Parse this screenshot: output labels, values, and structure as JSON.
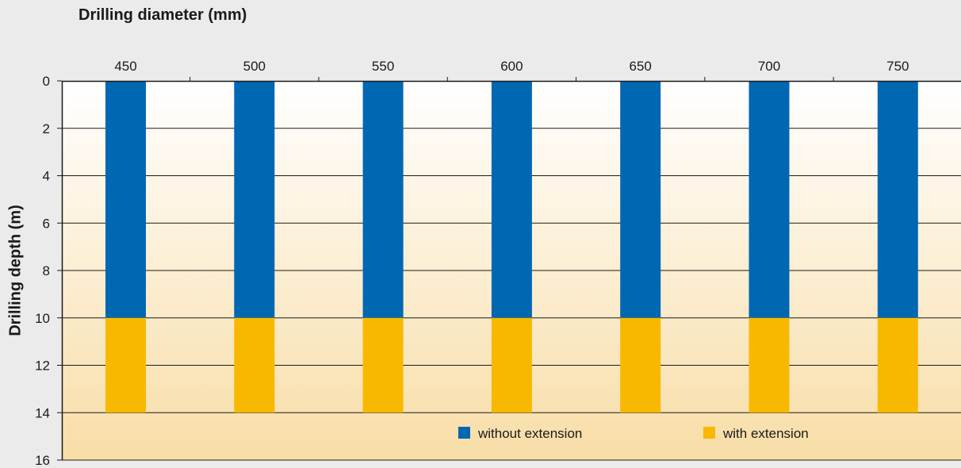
{
  "chart_data": {
    "type": "bar",
    "title": "Drilling diameter (mm)",
    "ylabel": "Drilling depth (m)",
    "categories": [
      "450",
      "500",
      "550",
      "600",
      "650",
      "700",
      "750"
    ],
    "x_axis_position": "top",
    "y_inverted": true,
    "ylim": [
      0,
      16
    ],
    "yticks": [
      "0",
      "2",
      "4",
      "6",
      "8",
      "10",
      "12",
      "14",
      "16"
    ],
    "grid": true,
    "legend_position": "bottom-right",
    "series": [
      {
        "name": "without extension",
        "color": "#0067b3",
        "start": [
          0,
          0,
          0,
          0,
          0,
          0,
          0
        ],
        "end": [
          10,
          10,
          10,
          10,
          10,
          10,
          10
        ]
      },
      {
        "name": "with extension",
        "color": "#f9b800",
        "start": [
          10,
          10,
          10,
          10,
          10,
          10,
          10
        ],
        "end": [
          14,
          14,
          14,
          14,
          14,
          14,
          14
        ]
      }
    ],
    "colors": {
      "background": "#ebebeb",
      "plot_top": "#ffffff",
      "plot_bottom": "#f8dda6"
    }
  }
}
